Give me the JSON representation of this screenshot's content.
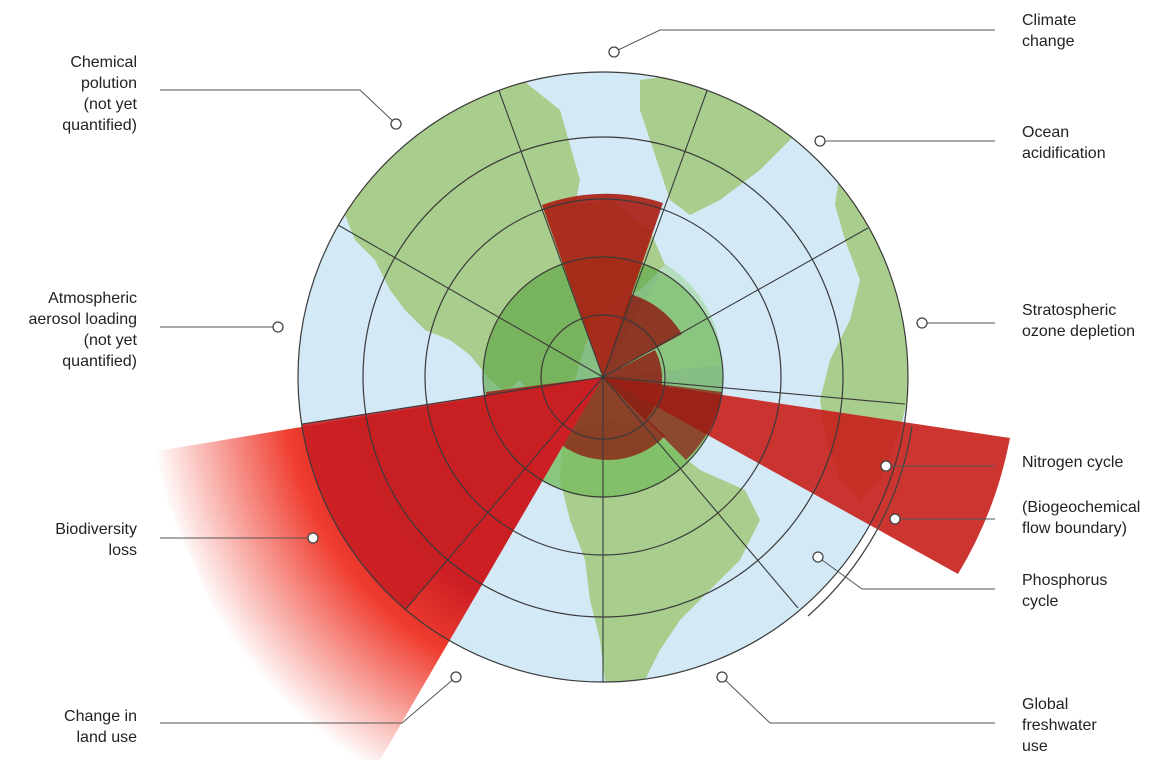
{
  "labels": {
    "chemical_pollution": "Chemical\npolution\n(not yet\nquantified)",
    "atmospheric_aerosol": "Atmospheric\naerosol loading\n(not yet\nquantified)",
    "biodiversity_loss": "Biodiversity\nloss",
    "land_use": "Change in\nland use",
    "climate_change": "Climate\nchange",
    "ocean_acidification": "Ocean\nacidification",
    "ozone_depletion": "Stratospheric\nozone depletion",
    "nitrogen_cycle": "Nitrogen cycle",
    "biogeochemical_flow": "(Biogeochemical\nflow boundary)",
    "phosphorus_cycle": "Phosphorus\ncycle",
    "freshwater_use": "Global\nfreshwater\nuse"
  },
  "colors": {
    "ocean": "#d3eaf6",
    "land": "#a9cd8c",
    "safe_zone": "#5da645",
    "overshoot_dark": "#8c1f14",
    "overshoot_red": "#cc1f24",
    "overshoot_bright": "#ef3224",
    "rings": "#3a3a3a",
    "leader": "#555555"
  },
  "icons": {
    "background": "world-map-icon"
  }
}
